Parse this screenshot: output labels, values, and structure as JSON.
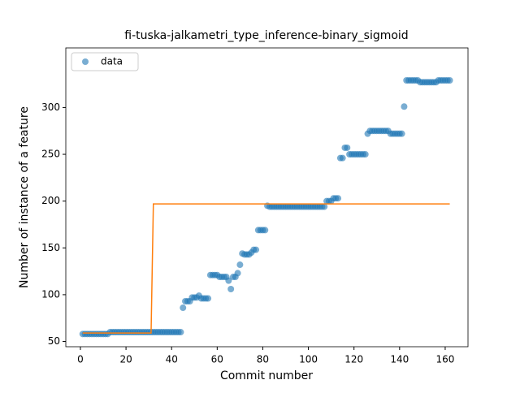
{
  "chart_data": {
    "type": "scatter",
    "title": "fi-tuska-jalkametri_type_inference-binary_sigmoid",
    "x_label": "Commit number",
    "y_label": "Number of instance of a feature",
    "xlim": [
      -6.4,
      170
    ],
    "ylim": [
      44.4,
      363.7
    ],
    "xticks": [
      0,
      20,
      40,
      60,
      80,
      100,
      120,
      140,
      160
    ],
    "yticks": [
      50,
      100,
      150,
      200,
      250,
      300
    ],
    "legend": "upper left",
    "series": [
      {
        "name": "data",
        "type": "scatter",
        "color": "#1f77b4",
        "x": [
          1,
          2,
          3,
          4,
          5,
          6,
          7,
          8,
          9,
          10,
          11,
          12,
          13,
          14,
          15,
          16,
          17,
          18,
          19,
          20,
          21,
          22,
          23,
          24,
          25,
          26,
          27,
          28,
          29,
          30,
          31,
          32,
          33,
          34,
          35,
          36,
          37,
          38,
          39,
          40,
          41,
          42,
          43,
          44,
          45,
          46,
          47,
          48,
          49,
          50,
          51,
          52,
          53,
          54,
          55,
          56,
          57,
          58,
          59,
          60,
          61,
          62,
          63,
          64,
          65,
          66,
          67,
          68,
          69,
          70,
          71,
          72,
          73,
          74,
          75,
          76,
          77,
          78,
          79,
          80,
          81,
          82,
          83,
          84,
          85,
          86,
          87,
          88,
          89,
          90,
          91,
          92,
          93,
          94,
          95,
          96,
          97,
          98,
          99,
          100,
          101,
          102,
          103,
          104,
          105,
          106,
          107,
          108,
          109,
          110,
          111,
          112,
          113,
          114,
          115,
          116,
          117,
          118,
          119,
          120,
          121,
          122,
          123,
          124,
          125,
          126,
          127,
          128,
          129,
          130,
          131,
          132,
          133,
          134,
          135,
          136,
          137,
          138,
          139,
          140,
          141,
          142,
          143,
          144,
          145,
          146,
          147,
          148,
          149,
          150,
          151,
          152,
          153,
          154,
          155,
          156,
          157,
          158,
          159,
          160,
          161,
          162
        ],
        "values": [
          58,
          58,
          58,
          58,
          58,
          58,
          58,
          58,
          58,
          58,
          58,
          58,
          60,
          60,
          60,
          60,
          60,
          60,
          60,
          60,
          60,
          60,
          60,
          60,
          60,
          60,
          60,
          60,
          60,
          60,
          60,
          60,
          60,
          60,
          60,
          60,
          60,
          60,
          60,
          60,
          60,
          60,
          60,
          60,
          86,
          93,
          93,
          93,
          97,
          97,
          97,
          99,
          96,
          96,
          96,
          96,
          121,
          121,
          121,
          121,
          119,
          119,
          119,
          119,
          115,
          106,
          119,
          119,
          123,
          132,
          144,
          143,
          143,
          143,
          145,
          148,
          148,
          169,
          169,
          169,
          169,
          195,
          194,
          194,
          194,
          194,
          194,
          194,
          194,
          194,
          194,
          194,
          194,
          194,
          194,
          194,
          194,
          194,
          194,
          194,
          194,
          194,
          194,
          194,
          194,
          194,
          194,
          200,
          200,
          200,
          203,
          203,
          203,
          246,
          246,
          257,
          257,
          250,
          250,
          250,
          250,
          250,
          250,
          250,
          250,
          272,
          275,
          275,
          275,
          275,
          275,
          275,
          275,
          275,
          275,
          272,
          272,
          272,
          272,
          272,
          272,
          301,
          329,
          329,
          329,
          329,
          329,
          329,
          327,
          327,
          327,
          327,
          327,
          327,
          327,
          327,
          329,
          329,
          329,
          329,
          329,
          329
        ]
      },
      {
        "type": "line",
        "color": "#ff7f0e",
        "x": [
          1,
          31,
          32,
          162
        ],
        "values": [
          59,
          59,
          197,
          197
        ]
      }
    ]
  }
}
